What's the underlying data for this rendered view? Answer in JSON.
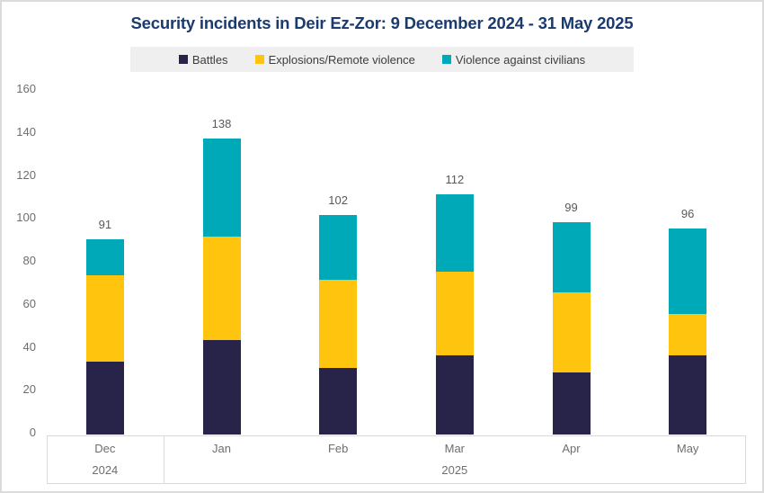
{
  "title": "Security incidents in Deir Ez-Zor: 9 December 2024 - 31 May 2025",
  "colors": {
    "battles": "#282449",
    "explosions": "#ffc40e",
    "violence": "#00a9b8",
    "title_text": "#1b3a6e",
    "axis_text": "#6e6e6e",
    "data_label_text": "#595959",
    "legend_text": "#3d3d3d",
    "legend_bg": "#efefef",
    "axis_line": "#d9d9d9"
  },
  "legend": {
    "items": [
      {
        "label": "Battles",
        "color_key": "battles"
      },
      {
        "label": "Explosions/Remote violence",
        "color_key": "explosions"
      },
      {
        "label": "Violence against civilians",
        "color_key": "violence"
      }
    ]
  },
  "chart_data": {
    "type": "bar",
    "stacked": true,
    "title": "Security incidents in Deir Ez-Zor: 9 December 2024 - 31 May 2025",
    "categories": [
      "Dec",
      "Jan",
      "Feb",
      "Mar",
      "Apr",
      "May"
    ],
    "year_groups": [
      {
        "label": "2024",
        "start": 0,
        "span": 1
      },
      {
        "label": "2025",
        "start": 1,
        "span": 5
      }
    ],
    "series": [
      {
        "name": "Battles",
        "color_key": "battles",
        "values": [
          34,
          44,
          31,
          37,
          29,
          37
        ]
      },
      {
        "name": "Explosions/Remote violence",
        "color_key": "explosions",
        "values": [
          40,
          48,
          41,
          39,
          37,
          19
        ]
      },
      {
        "name": "Violence against civilians",
        "color_key": "violence",
        "values": [
          17,
          46,
          30,
          36,
          33,
          40
        ]
      }
    ],
    "totals": [
      91,
      138,
      102,
      112,
      99,
      96
    ],
    "ylim": [
      0,
      160
    ],
    "yticks": [
      0,
      20,
      40,
      60,
      80,
      100,
      120,
      140,
      160
    ],
    "grid": "off",
    "legend_position": "top"
  }
}
